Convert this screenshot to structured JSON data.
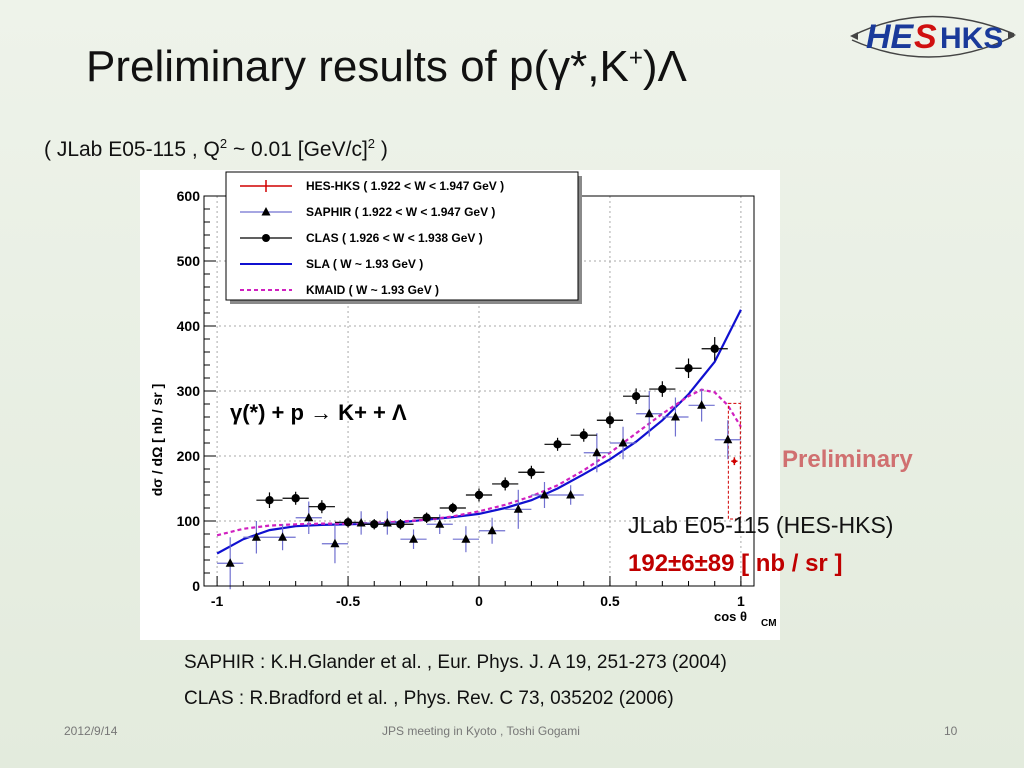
{
  "slide": {
    "title_main": "Preliminary results of p(γ*,K",
    "title_sup": "+",
    "title_end": ")Λ",
    "subtitle_a": "( JLab E05-115 , Q",
    "subtitle_sup1": "2",
    "subtitle_b": " ~ 0.01 [GeV/c]",
    "subtitle_sup2": "2",
    "subtitle_c": " )",
    "logo_text_he": "HE",
    "logo_text_s": "S",
    "logo_text_hks": "HKS",
    "preliminary_label": "Preliminary",
    "result_label": "JLab E05-115 (HES-HKS)",
    "result_value": "192±6±89 [ nb / sr ]",
    "ref_saphir": "SAPHIR :  K.H.Glander et al. , Eur. Phys. J. A 19, 251-273 (2004)",
    "ref_clas": "CLAS : R.Bradford et al. , Phys. Rev. C 73, 035202 (2006)",
    "footer_date": "2012/9/14",
    "footer_center": "JPS meeting in Kyoto , Toshi Gogami",
    "footer_page": "10"
  },
  "colors": {
    "hes": "#d00000",
    "saphir": "#3a3acc",
    "clas": "#000000",
    "sla": "#1010d0",
    "kmaid": "#d020c0",
    "errbar": "#7070d0",
    "logo_blue": "#1a3a9a",
    "logo_red": "#d01010",
    "logo_green": "#109040"
  },
  "chart_data": {
    "type": "scatter",
    "xlim": [
      -1.05,
      1.05
    ],
    "ylim": [
      0,
      600
    ],
    "x_ticks": [
      "-1",
      "-0.5",
      "0",
      "0.5",
      "1"
    ],
    "x_tick_values": [
      -1,
      -0.5,
      0,
      0.5,
      1
    ],
    "y_ticks": [
      "0",
      "100",
      "200",
      "300",
      "400",
      "500",
      "600"
    ],
    "y_tick_values": [
      0,
      100,
      200,
      300,
      400,
      500,
      600
    ],
    "xlabel": "cos θ",
    "xlabel_sub": "CM",
    "ylabel": "dσ / dΩ  [ nb / sr ]",
    "annotation": "γ(*) + p → K+ + Λ",
    "grid": true,
    "legend_position": "top-left",
    "legend": [
      {
        "key": "hes",
        "label": "HES-HKS ( 1.922 < W < 1.947 GeV )",
        "style": "point-red"
      },
      {
        "key": "saphir",
        "label": "SAPHIR  ( 1.922 < W < 1.947 GeV )",
        "style": "triangle"
      },
      {
        "key": "clas",
        "label": "CLAS ( 1.926 < W < 1.938 GeV )",
        "style": "circle"
      },
      {
        "key": "sla",
        "label": "SLA ( W ~ 1.93 GeV )",
        "style": "line-blue"
      },
      {
        "key": "kmaid",
        "label": "KMAID ( W ~ 1.93 GeV )",
        "style": "dash-magenta"
      }
    ],
    "series": [
      {
        "name": "HES-HKS",
        "marker": "point",
        "x": [
          0.975
        ],
        "y": [
          192
        ],
        "yerr": [
          6
        ],
        "syst": [
          89
        ]
      },
      {
        "name": "SAPHIR",
        "marker": "triangle",
        "x": [
          -0.95,
          -0.85,
          -0.75,
          -0.65,
          -0.55,
          -0.45,
          -0.35,
          -0.25,
          -0.15,
          -0.05,
          0.05,
          0.15,
          0.25,
          0.35,
          0.45,
          0.55,
          0.65,
          0.75,
          0.85,
          0.95
        ],
        "y": [
          35,
          75,
          75,
          105,
          65,
          97,
          97,
          72,
          95,
          72,
          85,
          118,
          140,
          140,
          205,
          220,
          265,
          260,
          278,
          225
        ],
        "yerr": [
          40,
          25,
          20,
          25,
          30,
          18,
          18,
          15,
          15,
          20,
          20,
          30,
          20,
          15,
          30,
          25,
          35,
          30,
          25,
          30
        ]
      },
      {
        "name": "CLAS",
        "marker": "circle",
        "x": [
          -0.8,
          -0.7,
          -0.6,
          -0.5,
          -0.4,
          -0.3,
          -0.2,
          -0.1,
          0.0,
          0.1,
          0.2,
          0.3,
          0.4,
          0.5,
          0.6,
          0.7,
          0.8,
          0.9
        ],
        "y": [
          132,
          135,
          122,
          98,
          95,
          95,
          105,
          120,
          140,
          157,
          175,
          218,
          232,
          255,
          292,
          303,
          335,
          365
        ],
        "yerr": [
          12,
          10,
          10,
          8,
          8,
          8,
          8,
          8,
          10,
          10,
          10,
          10,
          10,
          12,
          12,
          12,
          15,
          18
        ]
      }
    ],
    "curves": {
      "sla": {
        "x": [
          -1,
          -0.9,
          -0.8,
          -0.7,
          -0.6,
          -0.5,
          -0.4,
          -0.3,
          -0.2,
          -0.1,
          0,
          0.1,
          0.2,
          0.3,
          0.4,
          0.5,
          0.6,
          0.7,
          0.8,
          0.85,
          0.9,
          0.95,
          1.0
        ],
        "y": [
          50,
          72,
          86,
          92,
          94,
          95,
          96,
          98,
          102,
          106,
          111,
          120,
          132,
          150,
          172,
          195,
          222,
          255,
          295,
          320,
          345,
          385,
          425
        ]
      },
      "kmaid": {
        "x": [
          -1,
          -0.9,
          -0.8,
          -0.7,
          -0.6,
          -0.5,
          -0.4,
          -0.3,
          -0.2,
          -0.1,
          0,
          0.1,
          0.2,
          0.3,
          0.4,
          0.5,
          0.6,
          0.7,
          0.8,
          0.85,
          0.9,
          0.95,
          1.0
        ],
        "y": [
          78,
          88,
          93,
          95,
          96,
          96,
          97,
          99,
          102,
          107,
          115,
          125,
          138,
          155,
          178,
          205,
          235,
          265,
          292,
          302,
          298,
          278,
          245
        ]
      }
    }
  }
}
